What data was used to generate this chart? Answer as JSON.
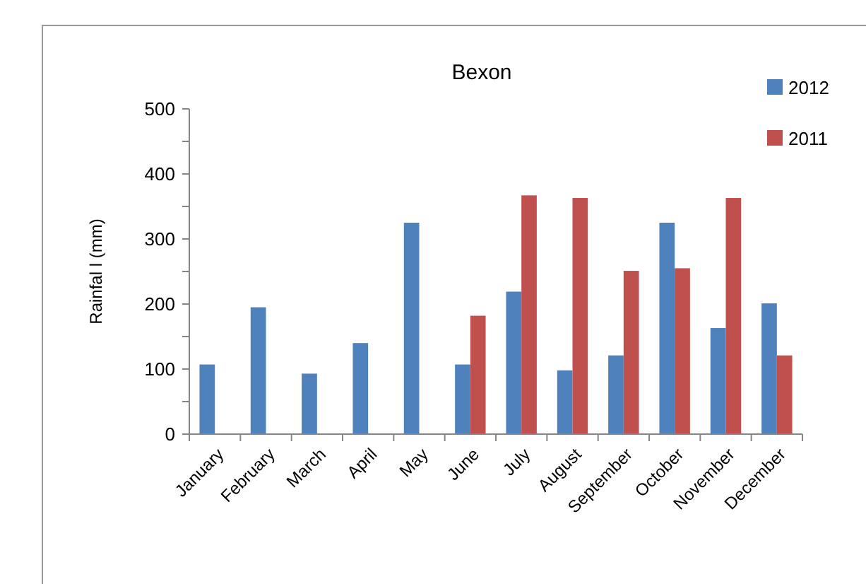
{
  "chart_data": {
    "type": "bar",
    "title": "Bexon",
    "ylabel": "Rainfal l (mm)",
    "categories": [
      "January",
      "February",
      "March",
      "April",
      "May",
      "June",
      "July",
      "August",
      "September",
      "October",
      "November",
      "December"
    ],
    "series": [
      {
        "name": "2012",
        "color": "#4f81bd",
        "values": [
          107,
          195,
          93,
          140,
          325,
          107,
          219,
          98,
          121,
          325,
          163,
          201
        ]
      },
      {
        "name": "2011",
        "color": "#c0504d",
        "values": [
          null,
          null,
          null,
          null,
          null,
          182,
          367,
          363,
          251,
          255,
          363,
          121
        ]
      }
    ],
    "ylim": [
      0,
      500
    ],
    "yticks": [
      0,
      {
        "value": 50,
        "label": null
      },
      100,
      {
        "value": 150,
        "label": null
      },
      200,
      {
        "value": 250,
        "label": null
      },
      300,
      {
        "value": 350,
        "label": null
      },
      400,
      {
        "value": 450,
        "label": null
      },
      500
    ],
    "grid": false,
    "legend": "top right"
  }
}
